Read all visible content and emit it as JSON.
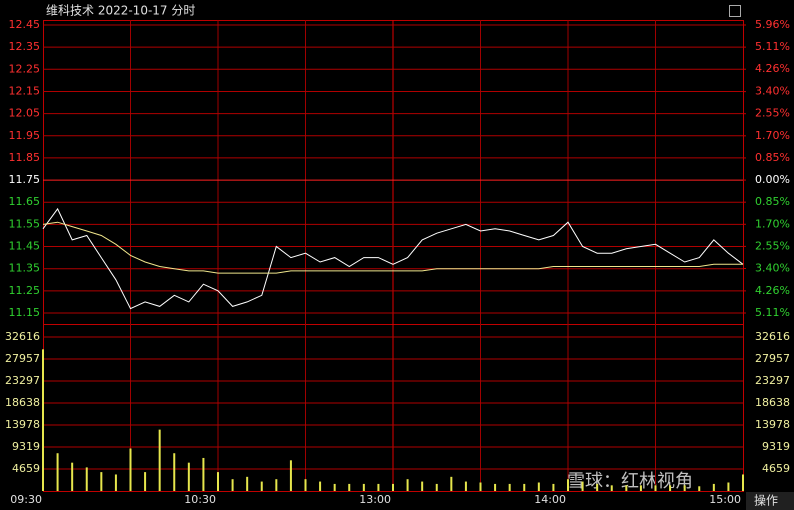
{
  "chart_data": [
    {
      "type": "line",
      "title": "维科技术  2022-10-17 分时",
      "categories": [
        "09:30",
        null,
        null,
        null,
        null,
        null,
        null,
        null,
        null,
        null,
        null,
        null,
        "10:30",
        null,
        null,
        null,
        null,
        null,
        null,
        null,
        null,
        null,
        null,
        null,
        "13:00",
        null,
        null,
        null,
        null,
        null,
        null,
        null,
        null,
        null,
        null,
        null,
        "14:00",
        null,
        null,
        null,
        null,
        null,
        null,
        null,
        null,
        null,
        null,
        null,
        "15:00"
      ],
      "series": [
        {
          "color": "#ffffff",
          "values": [
            11.53,
            11.62,
            11.48,
            11.5,
            11.4,
            11.3,
            11.17,
            11.2,
            11.18,
            11.23,
            11.2,
            11.28,
            11.25,
            11.18,
            11.2,
            11.23,
            11.45,
            11.4,
            11.42,
            11.38,
            11.4,
            11.36,
            11.4,
            11.4,
            11.37,
            11.4,
            11.48,
            11.51,
            11.53,
            11.55,
            11.52,
            11.53,
            11.52,
            11.5,
            11.48,
            11.5,
            11.56,
            11.45,
            11.42,
            11.42,
            11.44,
            11.45,
            11.46,
            11.42,
            11.38,
            11.4,
            11.48,
            11.42,
            11.37
          ]
        },
        {
          "color": "#f0e68c",
          "values": [
            11.55,
            11.56,
            11.54,
            11.52,
            11.5,
            11.46,
            11.41,
            11.38,
            11.36,
            11.35,
            11.34,
            11.34,
            11.33,
            11.33,
            11.33,
            11.33,
            11.33,
            11.34,
            11.34,
            11.34,
            11.34,
            11.34,
            11.34,
            11.34,
            11.34,
            11.34,
            11.34,
            11.35,
            11.35,
            11.35,
            11.35,
            11.35,
            11.35,
            11.35,
            11.35,
            11.36,
            11.36,
            11.36,
            11.36,
            11.36,
            11.36,
            11.36,
            11.36,
            11.36,
            11.36,
            11.36,
            11.37,
            11.37,
            11.37
          ]
        }
      ],
      "ylim": [
        11.15,
        12.45
      ],
      "yticks": [
        12.45,
        12.35,
        12.25,
        12.15,
        12.05,
        11.95,
        11.85,
        11.75,
        11.65,
        11.55,
        11.45,
        11.35,
        11.25,
        11.15
      ],
      "y2lim": [
        -5.11,
        5.96
      ],
      "y2ticks": [
        {
          "value": 5.96,
          "label": "5.96%"
        },
        {
          "value": 5.11,
          "label": "5.11%"
        },
        {
          "value": 4.26,
          "label": "4.26%"
        },
        {
          "value": 3.4,
          "label": "3.40%"
        },
        {
          "value": 2.55,
          "label": "2.55%"
        },
        {
          "value": 1.7,
          "label": "1.70%"
        },
        {
          "value": 0.85,
          "label": "0.85%"
        },
        {
          "value": 0,
          "label": "0.00%"
        },
        {
          "value": -0.85,
          "label": "0.85%"
        },
        {
          "value": -1.7,
          "label": "1.70%"
        },
        {
          "value": -2.55,
          "label": "2.55%"
        },
        {
          "value": -3.4,
          "label": "3.40%"
        },
        {
          "value": -4.26,
          "label": "4.26%"
        },
        {
          "value": -5.11,
          "label": "5.11%"
        }
      ],
      "grid": true
    },
    {
      "type": "bar",
      "color": "#e6e64c",
      "values": [
        30000,
        8000,
        6000,
        5000,
        4000,
        3500,
        9000,
        4000,
        13000,
        8000,
        6000,
        7000,
        4000,
        2500,
        3000,
        2000,
        2500,
        6500,
        2500,
        2000,
        1500,
        1500,
        1500,
        1500,
        1500,
        2500,
        2000,
        1500,
        3000,
        2000,
        1800,
        1500,
        1500,
        1500,
        1800,
        1500,
        2500,
        2000,
        1500,
        1200,
        1200,
        1200,
        1200,
        1200,
        1200,
        1000,
        1500,
        1800,
        3500
      ],
      "ylim": [
        0,
        32616
      ],
      "yticks": [
        32616,
        27957,
        23297,
        18638,
        13978,
        9319,
        4659
      ],
      "grid": true
    }
  ],
  "ui": {
    "button": "操作",
    "watermark": "雪球：红林视角"
  }
}
